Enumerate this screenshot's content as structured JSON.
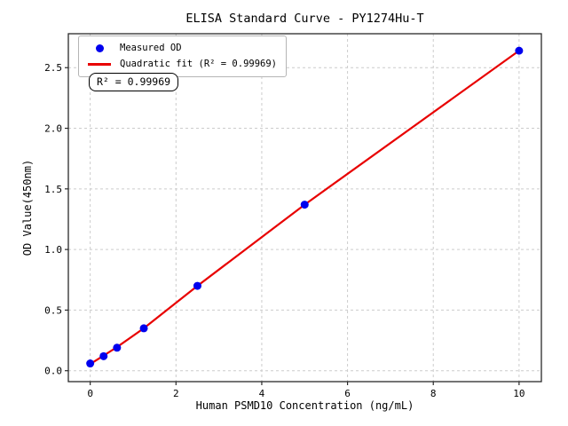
{
  "figure": {
    "background": "#ffffff"
  },
  "chart_data": {
    "type": "scatter",
    "title": "ELISA Standard Curve - PY1274Hu-T",
    "xlabel": "Human PSMD10 Concentration (ng/mL)",
    "ylabel": "OD Value(450nm)",
    "xlim": [
      -0.51,
      10.52
    ],
    "ylim": [
      -0.09,
      2.78
    ],
    "grid": true,
    "x_ticks": {
      "values": [
        0,
        2,
        4,
        6,
        8,
        10
      ],
      "labels": [
        "0",
        "2",
        "4",
        "6",
        "8",
        "10"
      ]
    },
    "y_ticks": {
      "values": [
        0,
        0.5,
        1.0,
        1.5,
        2.0,
        2.5
      ],
      "labels": [
        "0.0",
        "0.5",
        "1.0",
        "1.5",
        "2.0",
        "2.5"
      ]
    },
    "series": [
      {
        "name": "Measured OD",
        "kind": "scatter",
        "color": "#0000ee",
        "x": [
          0,
          0.3125,
          0.625,
          1.25,
          2.5,
          5,
          10
        ],
        "y": [
          0.06,
          0.12,
          0.19,
          0.35,
          0.7,
          1.37,
          2.64
        ]
      },
      {
        "name": "Quadratic fit (R² = 0.99969)",
        "kind": "line",
        "color": "#e80000",
        "x": [
          0,
          0.3125,
          0.625,
          1.25,
          2.5,
          5,
          10
        ],
        "y": [
          0.055,
          0.125,
          0.195,
          0.35,
          0.7,
          1.37,
          2.64
        ]
      }
    ],
    "legend": {
      "position": "upper-left",
      "items": [
        {
          "label": "Measured OD",
          "marker": "dot",
          "color": "#0000ee"
        },
        {
          "label": "Quadratic fit (R² = 0.99969)",
          "marker": "line",
          "color": "#e80000"
        }
      ]
    },
    "annotation": "R² = 0.99969",
    "style": {
      "grid_color": "#cccccc",
      "axis_color": "#2a2a2a",
      "tick_label_color": "#000000"
    }
  }
}
